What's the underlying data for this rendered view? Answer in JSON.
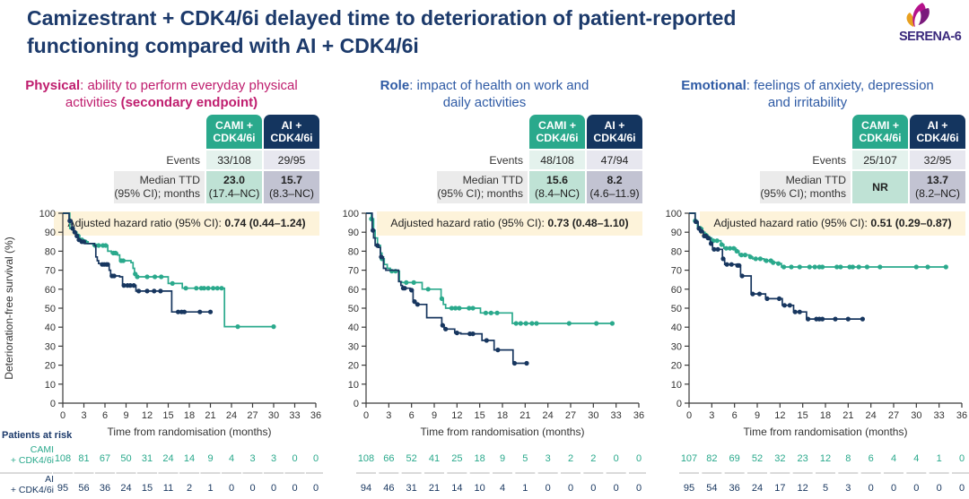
{
  "title": {
    "line1": "Camizestrant + CDK4/6i delayed time to deterioration of patient-reported",
    "line2": "functioning compared with AI + CDK4/6i"
  },
  "logo": {
    "text": "SERENA-6"
  },
  "colors": {
    "title_navy": "#1c3a6b",
    "cami_teal": "#2aa98c",
    "ai_navy": "#17365f",
    "magenta_heading": "#bf1d6e",
    "blue_heading": "#2f5ba5",
    "banner_bg": "#fdf3da"
  },
  "table_headers": {
    "cami": {
      "l1": "CAMI +",
      "l2": "CDK4/6i"
    },
    "ai": {
      "l1": "AI +",
      "l2": "CDK4/6i"
    }
  },
  "labels": {
    "events_label": "Events",
    "median_l1": "Median TTD",
    "median_l2": "(95% CI); months",
    "hr_prefix": "Adjusted hazard ratio (95% CI): ",
    "patients_at_risk": "Patients at risk",
    "risk_rows": [
      {
        "l1": "CAMI",
        "l2": "+ CDK4/6i"
      },
      {
        "l1": "AI",
        "l2": "+ CDK4/6i"
      }
    ]
  },
  "panels": [
    {
      "heading": {
        "lead": "Physical",
        "rest": ": ability to perform everyday physical",
        "line2_normal": "activities ",
        "line2_bold": "(secondary endpoint)",
        "color": "#bf1d6e"
      },
      "table": {
        "events": [
          "33/108",
          "29/95"
        ],
        "median": [
          {
            "value": "23.0",
            "ci": "(17.4–NC)"
          },
          {
            "value": "15.7",
            "ci": "(8.3–NC)"
          }
        ]
      },
      "hazard": {
        "bold": "0.74 (0.44–1.24)"
      }
    },
    {
      "heading": {
        "lead": "Role",
        "rest": ": impact of health on work and",
        "line2_normal": "daily activities",
        "line2_bold": "",
        "color": "#2f5ba5"
      },
      "table": {
        "events": [
          "48/108",
          "47/94"
        ],
        "median": [
          {
            "value": "15.6",
            "ci": "(8.4–NC)"
          },
          {
            "value": "8.2",
            "ci": "(4.6–11.9)"
          }
        ]
      },
      "hazard": {
        "bold": "0.73 (0.48–1.10)"
      }
    },
    {
      "heading": {
        "lead": "Emotional",
        "rest": ": feelings of anxiety, depression",
        "line2_normal": "and irritability",
        "line2_bold": "",
        "color": "#2f5ba5"
      },
      "table": {
        "events": [
          "25/107",
          "32/95"
        ],
        "median": [
          {
            "value": "NR",
            "ci": ""
          },
          {
            "value": "13.7",
            "ci": "(8.2–NC)"
          }
        ]
      },
      "hazard": {
        "bold": "0.51 (0.29–0.87)"
      }
    }
  ],
  "chart_data": [
    {
      "type": "line",
      "title": "Physical deterioration-free survival",
      "xlabel": "Time from randomisation (months)",
      "ylabel": "Deterioration-free survival (%)",
      "xlim": [
        0,
        36
      ],
      "xtick_step": 3,
      "ylim": [
        0,
        100
      ],
      "ytick_step": 10,
      "series": [
        {
          "name": "CAMI + CDK4/6i",
          "color": "#2aa98c",
          "steps": [
            [
              0,
              100
            ],
            [
              1,
              92
            ],
            [
              1.5,
              90
            ],
            [
              2,
              88
            ],
            [
              2.4,
              86
            ],
            [
              3,
              85
            ],
            [
              3.6,
              84
            ],
            [
              4.3,
              83
            ],
            [
              6.4,
              80
            ],
            [
              6.9,
              79
            ],
            [
              7.8,
              78
            ],
            [
              8.1,
              75
            ],
            [
              9.7,
              74
            ],
            [
              10,
              71
            ],
            [
              10.2,
              68
            ],
            [
              10.5,
              66.5
            ],
            [
              15,
              63
            ],
            [
              17,
              60.5
            ],
            [
              23,
              40.3
            ],
            [
              30.2,
              40.3
            ]
          ],
          "censor_marks": [
            2.2,
            2.7,
            3.2,
            4.6,
            5.1,
            5.7,
            6.1,
            7.2,
            7.5,
            8.3,
            8.6,
            10.3,
            10.6,
            12,
            13.1,
            14,
            15.6,
            17.5,
            19,
            19.7,
            20.1,
            20.7,
            21.4,
            22,
            22.6,
            24.9,
            30
          ]
        },
        {
          "name": "AI + CDK4/6i",
          "color": "#17365f",
          "steps": [
            [
              0,
              100
            ],
            [
              0.9,
              96
            ],
            [
              1.3,
              92
            ],
            [
              1.6,
              90
            ],
            [
              1.9,
              88
            ],
            [
              2.2,
              86
            ],
            [
              2.6,
              85
            ],
            [
              3.1,
              84
            ],
            [
              4.5,
              83
            ],
            [
              4.7,
              77
            ],
            [
              4.9,
              75
            ],
            [
              5.1,
              73.5
            ],
            [
              5.4,
              73
            ],
            [
              6.6,
              70
            ],
            [
              6.8,
              67
            ],
            [
              8.1,
              66.5
            ],
            [
              8.5,
              62
            ],
            [
              10.4,
              59
            ],
            [
              15.5,
              48
            ],
            [
              21.2,
              48
            ]
          ],
          "censor_marks": [
            1.0,
            1.4,
            1.7,
            2.0,
            2.3,
            2.7,
            3.0,
            5.6,
            5.9,
            6.2,
            6.4,
            7.0,
            7.3,
            8.7,
            9.2,
            9.6,
            10.1,
            10.8,
            12.0,
            13.0,
            13.9,
            16.4,
            16.9,
            17.3,
            19.5,
            21.0
          ]
        }
      ],
      "at_risk": {
        "cami": [
          108,
          81,
          67,
          50,
          31,
          24,
          14,
          9,
          4,
          3,
          3,
          0,
          0
        ],
        "ai": [
          95,
          56,
          36,
          24,
          15,
          11,
          2,
          1,
          0,
          0,
          0,
          0,
          0
        ]
      }
    },
    {
      "type": "line",
      "title": "Role deterioration-free survival",
      "xlabel": "Time from randomisation (months)",
      "ylabel": "",
      "xlim": [
        0,
        36
      ],
      "xtick_step": 3,
      "ylim": [
        0,
        100
      ],
      "ytick_step": 10,
      "series": [
        {
          "name": "CAMI + CDK4/6i",
          "color": "#2aa98c",
          "steps": [
            [
              0,
              100
            ],
            [
              0.7,
              97
            ],
            [
              1.0,
              91
            ],
            [
              1.2,
              87
            ],
            [
              1.5,
              83
            ],
            [
              1.9,
              79
            ],
            [
              2.1,
              76
            ],
            [
              2.4,
              73
            ],
            [
              2.8,
              71
            ],
            [
              3.2,
              69.5
            ],
            [
              4.4,
              64
            ],
            [
              4.7,
              63.5
            ],
            [
              7.4,
              60
            ],
            [
              9.9,
              55
            ],
            [
              10.2,
              52
            ],
            [
              10.5,
              50
            ],
            [
              15.1,
              47.5
            ],
            [
              19.3,
              42
            ],
            [
              32.5,
              42
            ]
          ],
          "censor_marks": [
            0.7,
            2.1,
            3.4,
            3.9,
            5.3,
            6.3,
            8.2,
            10.0,
            11.3,
            11.8,
            12.3,
            13.6,
            14.1,
            15.8,
            16.5,
            17.3,
            19.8,
            20.4,
            21.1,
            21.9,
            22.5,
            26.8,
            30.4,
            32.5
          ]
        },
        {
          "name": "AI + CDK4/6i",
          "color": "#17365f",
          "steps": [
            [
              0,
              100
            ],
            [
              0.8,
              91
            ],
            [
              1.0,
              87
            ],
            [
              1.2,
              83
            ],
            [
              1.6,
              82
            ],
            [
              1.9,
              77
            ],
            [
              2.3,
              71
            ],
            [
              2.6,
              70
            ],
            [
              4.3,
              64
            ],
            [
              4.6,
              62
            ],
            [
              4.8,
              60.5
            ],
            [
              5.8,
              59.5
            ],
            [
              6.2,
              53.5
            ],
            [
              6.6,
              52
            ],
            [
              8.0,
              45
            ],
            [
              10.0,
              41
            ],
            [
              10.3,
              39
            ],
            [
              11.7,
              37
            ],
            [
              12.5,
              36.5
            ],
            [
              15.3,
              33
            ],
            [
              16.9,
              28
            ],
            [
              19.4,
              21
            ],
            [
              21.4,
              21
            ]
          ],
          "censor_marks": [
            0.9,
            1.5,
            2.0,
            4.9,
            5.1,
            6.0,
            6.4,
            6.8,
            10.1,
            10.5,
            12.0,
            13.7,
            14.1,
            15.9,
            17.4,
            19.6,
            21.2
          ]
        }
      ],
      "at_risk": {
        "cami": [
          108,
          66,
          52,
          41,
          25,
          18,
          9,
          5,
          3,
          2,
          2,
          0,
          0
        ],
        "ai": [
          94,
          46,
          31,
          21,
          14,
          10,
          4,
          1,
          0,
          0,
          0,
          0,
          0
        ]
      }
    },
    {
      "type": "line",
      "title": "Emotional deterioration-free survival",
      "xlabel": "Time from randomisation (months)",
      "ylabel": "",
      "xlim": [
        0,
        36
      ],
      "xtick_step": 3,
      "ylim": [
        0,
        100
      ],
      "ytick_step": 10,
      "series": [
        {
          "name": "CAMI + CDK4/6i",
          "color": "#2aa98c",
          "steps": [
            [
              0,
              100
            ],
            [
              0.8,
              96
            ],
            [
              1.1,
              93
            ],
            [
              1.4,
              92
            ],
            [
              1.8,
              90
            ],
            [
              2.1,
              88.5
            ],
            [
              2.5,
              87
            ],
            [
              3.0,
              85.5
            ],
            [
              4.2,
              83.5
            ],
            [
              4.6,
              81.5
            ],
            [
              6.2,
              80
            ],
            [
              6.6,
              78
            ],
            [
              8.0,
              77
            ],
            [
              8.4,
              76
            ],
            [
              9.9,
              75
            ],
            [
              11.0,
              74
            ],
            [
              11.6,
              73.5
            ],
            [
              12.2,
              71.7
            ],
            [
              34,
              71.7
            ]
          ],
          "censor_marks": [
            0.8,
            1.5,
            2.2,
            2.6,
            3.2,
            3.7,
            4.3,
            4.9,
            5.4,
            5.9,
            6.3,
            6.9,
            7.4,
            8.1,
            8.8,
            9.4,
            10.2,
            10.8,
            11.1,
            11.8,
            12.5,
            13.5,
            14.6,
            15.9,
            16.6,
            17.2,
            17.6,
            19.5,
            20.0,
            21.2,
            21.6,
            22.4,
            23.5,
            25.2,
            30.0,
            31.5,
            33.9
          ]
        },
        {
          "name": "AI + CDK4/6i",
          "color": "#17365f",
          "steps": [
            [
              0,
              100
            ],
            [
              0.8,
              95.5
            ],
            [
              1.2,
              92
            ],
            [
              1.5,
              90.5
            ],
            [
              1.9,
              88
            ],
            [
              2.4,
              87
            ],
            [
              2.8,
              84
            ],
            [
              3.1,
              81
            ],
            [
              4.4,
              76
            ],
            [
              4.7,
              73
            ],
            [
              6.3,
              72.5
            ],
            [
              6.8,
              67
            ],
            [
              8.2,
              57.5
            ],
            [
              10.1,
              55
            ],
            [
              12.3,
              51.5
            ],
            [
              13.8,
              48
            ],
            [
              15.5,
              44.3
            ],
            [
              22.9,
              44.3
            ]
          ],
          "censor_marks": [
            0.9,
            1.3,
            1.6,
            2.0,
            2.2,
            2.5,
            2.9,
            3.3,
            3.8,
            4.5,
            5.0,
            5.6,
            6.4,
            6.6,
            7.0,
            8.4,
            9.3,
            10.3,
            11.9,
            12.6,
            13.3,
            14.0,
            14.6,
            15.7,
            16.8,
            17.2,
            17.6,
            19.3,
            21.0,
            22.9
          ]
        }
      ],
      "at_risk": {
        "cami": [
          107,
          82,
          69,
          52,
          32,
          23,
          12,
          8,
          6,
          4,
          4,
          1,
          0
        ],
        "ai": [
          95,
          54,
          36,
          24,
          17,
          12,
          5,
          3,
          0,
          0,
          0,
          0,
          0
        ]
      }
    }
  ]
}
